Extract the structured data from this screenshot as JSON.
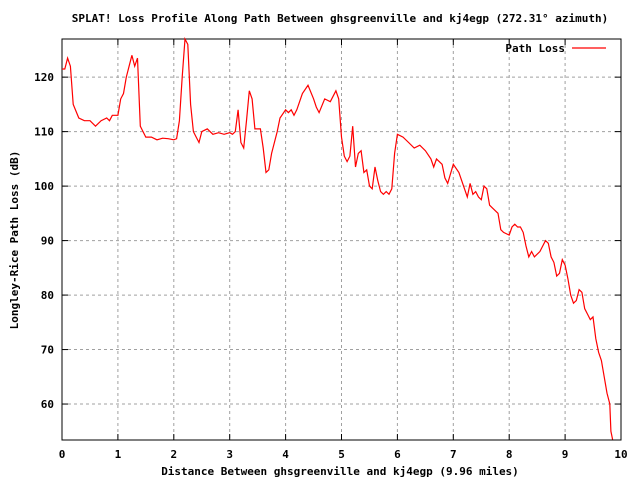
{
  "chart_data": {
    "type": "line",
    "title": "SPLAT! Loss Profile Along Path Between ghsgreenville and kj4egp (272.31° azimuth)",
    "xlabel": "Distance Between ghsgreenville and kj4egp (9.96 miles)",
    "ylabel": "Longley-Rice Path Loss (dB)",
    "xlim": [
      0,
      10
    ],
    "ylim": [
      53.4,
      127
    ],
    "xticks": [
      0,
      1,
      2,
      3,
      4,
      5,
      6,
      7,
      8,
      9,
      10
    ],
    "yticks": [
      60,
      70,
      80,
      90,
      100,
      110,
      120
    ],
    "grid": true,
    "legend_position": "top-right",
    "series": [
      {
        "name": "Path Loss",
        "color": "#ff0000",
        "x": [
          0,
          0.05,
          0.1,
          0.15,
          0.2,
          0.3,
          0.4,
          0.5,
          0.6,
          0.7,
          0.8,
          0.85,
          0.9,
          1.0,
          1.05,
          1.1,
          1.15,
          1.2,
          1.25,
          1.3,
          1.35,
          1.4,
          1.5,
          1.6,
          1.7,
          1.8,
          1.9,
          2.0,
          2.05,
          2.1,
          2.15,
          2.2,
          2.25,
          2.3,
          2.35,
          2.4,
          2.45,
          2.5,
          2.6,
          2.7,
          2.8,
          2.9,
          3.0,
          3.05,
          3.1,
          3.15,
          3.2,
          3.25,
          3.3,
          3.35,
          3.4,
          3.45,
          3.55,
          3.6,
          3.65,
          3.7,
          3.75,
          3.8,
          3.85,
          3.9,
          4.0,
          4.05,
          4.1,
          4.15,
          4.2,
          4.3,
          4.4,
          4.5,
          4.55,
          4.6,
          4.7,
          4.8,
          4.9,
          4.95,
          5.0,
          5.05,
          5.1,
          5.15,
          5.2,
          5.25,
          5.3,
          5.35,
          5.4,
          5.45,
          5.5,
          5.55,
          5.6,
          5.65,
          5.7,
          5.75,
          5.8,
          5.85,
          5.9,
          5.95,
          6.0,
          6.1,
          6.2,
          6.3,
          6.4,
          6.5,
          6.6,
          6.65,
          6.7,
          6.8,
          6.85,
          6.9,
          7.0,
          7.1,
          7.2,
          7.25,
          7.3,
          7.35,
          7.4,
          7.45,
          7.5,
          7.55,
          7.6,
          7.65,
          7.7,
          7.8,
          7.85,
          7.9,
          8.0,
          8.05,
          8.1,
          8.15,
          8.2,
          8.25,
          8.3,
          8.35,
          8.4,
          8.45,
          8.55,
          8.65,
          8.7,
          8.75,
          8.8,
          8.85,
          8.9,
          8.95,
          9.0,
          9.05,
          9.1,
          9.15,
          9.2,
          9.25,
          9.3,
          9.35,
          9.4,
          9.45,
          9.5,
          9.55,
          9.6,
          9.65,
          9.7,
          9.75,
          9.8,
          9.82,
          9.85
        ],
        "y": [
          121.5,
          121.5,
          123.5,
          122,
          115,
          112.5,
          112,
          112,
          111,
          112,
          112.5,
          112,
          113,
          113,
          116,
          117,
          120,
          122,
          124,
          122,
          123.5,
          111,
          109,
          109,
          108.5,
          108.8,
          108.7,
          108.5,
          108.7,
          112,
          120,
          127,
          126,
          115,
          110,
          109,
          108,
          110,
          110.5,
          109.5,
          109.8,
          109.5,
          109.8,
          109.5,
          110,
          114,
          108,
          107,
          112,
          117.5,
          116,
          110.5,
          110.5,
          107,
          102.5,
          103,
          106,
          108,
          110,
          112.5,
          114,
          113.5,
          114,
          113,
          114,
          117,
          118.5,
          116,
          114.5,
          113.5,
          116,
          115.5,
          117.5,
          116,
          109,
          105.5,
          104.5,
          105.5,
          111,
          103.5,
          106,
          106.5,
          102.5,
          103,
          100,
          99.5,
          103.5,
          101,
          99,
          98.5,
          99,
          98.5,
          99.5,
          106,
          109.5,
          109,
          108,
          107,
          107.5,
          106.5,
          105,
          103.5,
          105,
          104,
          101.5,
          100.5,
          104,
          102.5,
          99.5,
          98,
          100.5,
          98.5,
          99,
          98,
          97.5,
          100,
          99.5,
          96.5,
          96,
          95,
          92,
          91.5,
          91,
          92.5,
          93,
          92.5,
          92.5,
          91.5,
          89,
          87,
          88,
          87,
          88,
          90,
          89.5,
          87,
          86,
          83.5,
          84,
          86.5,
          85.5,
          83,
          80,
          78.5,
          79,
          81,
          80.5,
          77.5,
          76.5,
          75.5,
          76,
          72,
          69.5,
          68,
          65,
          62,
          60,
          55,
          53.5
        ]
      }
    ]
  }
}
